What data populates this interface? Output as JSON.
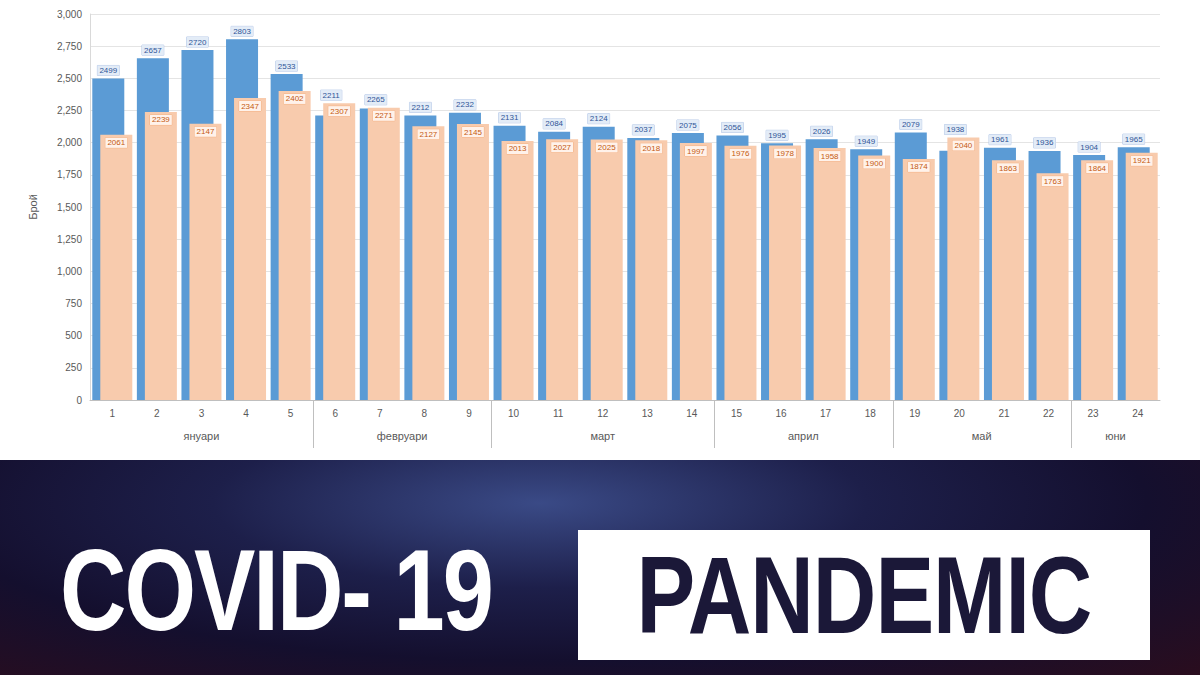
{
  "chart_data": {
    "type": "bar",
    "y_label": "Брой",
    "categories": [
      "1",
      "2",
      "3",
      "4",
      "5",
      "6",
      "7",
      "8",
      "9",
      "10",
      "11",
      "12",
      "13",
      "14",
      "15",
      "16",
      "17",
      "18",
      "19",
      "20",
      "21",
      "22",
      "23",
      "24"
    ],
    "category_groups": [
      {
        "label": "януари",
        "count": 5
      },
      {
        "label": "февруари",
        "count": 4
      },
      {
        "label": "март",
        "count": 5
      },
      {
        "label": "април",
        "count": 4
      },
      {
        "label": "май",
        "count": 4
      },
      {
        "label": "юни",
        "count": 2
      }
    ],
    "series": [
      {
        "color": "#5b9bd5",
        "values": [
          2499,
          2657,
          2720,
          2803,
          2533,
          2211,
          2265,
          2212,
          2232,
          2131,
          2084,
          2124,
          2037,
          2075,
          2056,
          1995,
          2026,
          1949,
          2079,
          1938,
          1961,
          1936,
          1904,
          1965
        ]
      },
      {
        "color": "#f8cbad",
        "values": [
          2061,
          2239,
          2147,
          2347,
          2402,
          2307,
          2271,
          2127,
          2145,
          2013,
          2027,
          2025,
          2018,
          1997,
          1976,
          1978,
          1958,
          1900,
          1874,
          2040,
          1863,
          1763,
          1864,
          1921
        ]
      }
    ],
    "ylim": [
      0,
      3000
    ],
    "yticks": [
      0,
      250,
      500,
      750,
      1000,
      1250,
      1500,
      1750,
      2000,
      2250,
      2500,
      2750,
      3000
    ],
    "grid": true,
    "data_labels": true
  },
  "banner": {
    "left": "COVID- 19",
    "right": "PANDEMIC"
  }
}
